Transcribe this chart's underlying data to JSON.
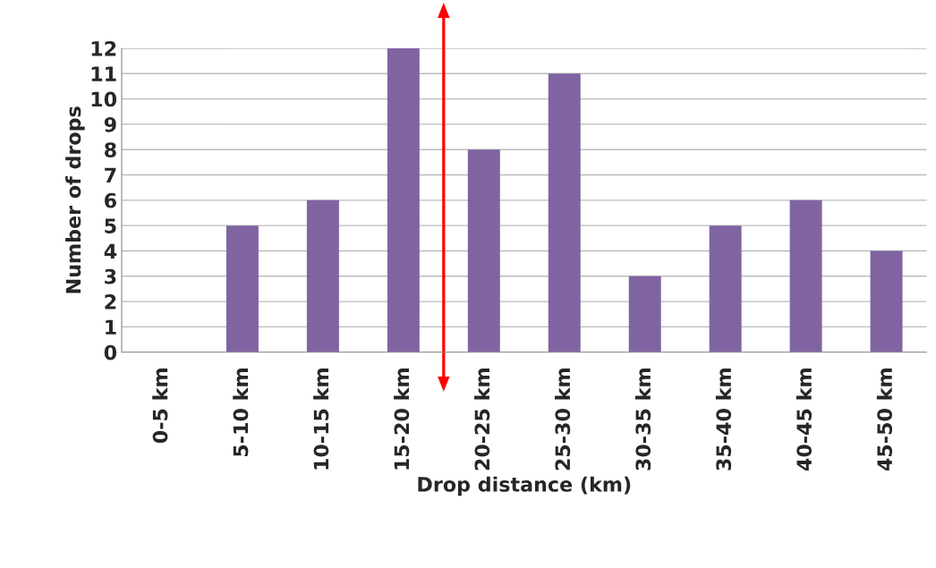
{
  "chart_data": {
    "type": "bar",
    "xlabel": "Drop distance (km)",
    "ylabel": "Number of drops",
    "categories": [
      "0-5 km",
      "5-10 km",
      "10-15 km",
      "15-20 km",
      "20-25 km",
      "25-30 km",
      "30-35 km",
      "35-40 km",
      "40-45 km",
      "45-50 km"
    ],
    "values": [
      0,
      5,
      6,
      12,
      8,
      11,
      3,
      5,
      6,
      4
    ],
    "color": "#8064a2",
    "ylim": [
      0,
      12
    ],
    "yticks": [
      0,
      1,
      2,
      3,
      4,
      5,
      6,
      7,
      8,
      9,
      10,
      11,
      12
    ],
    "grid": "y",
    "legend": false
  }
}
